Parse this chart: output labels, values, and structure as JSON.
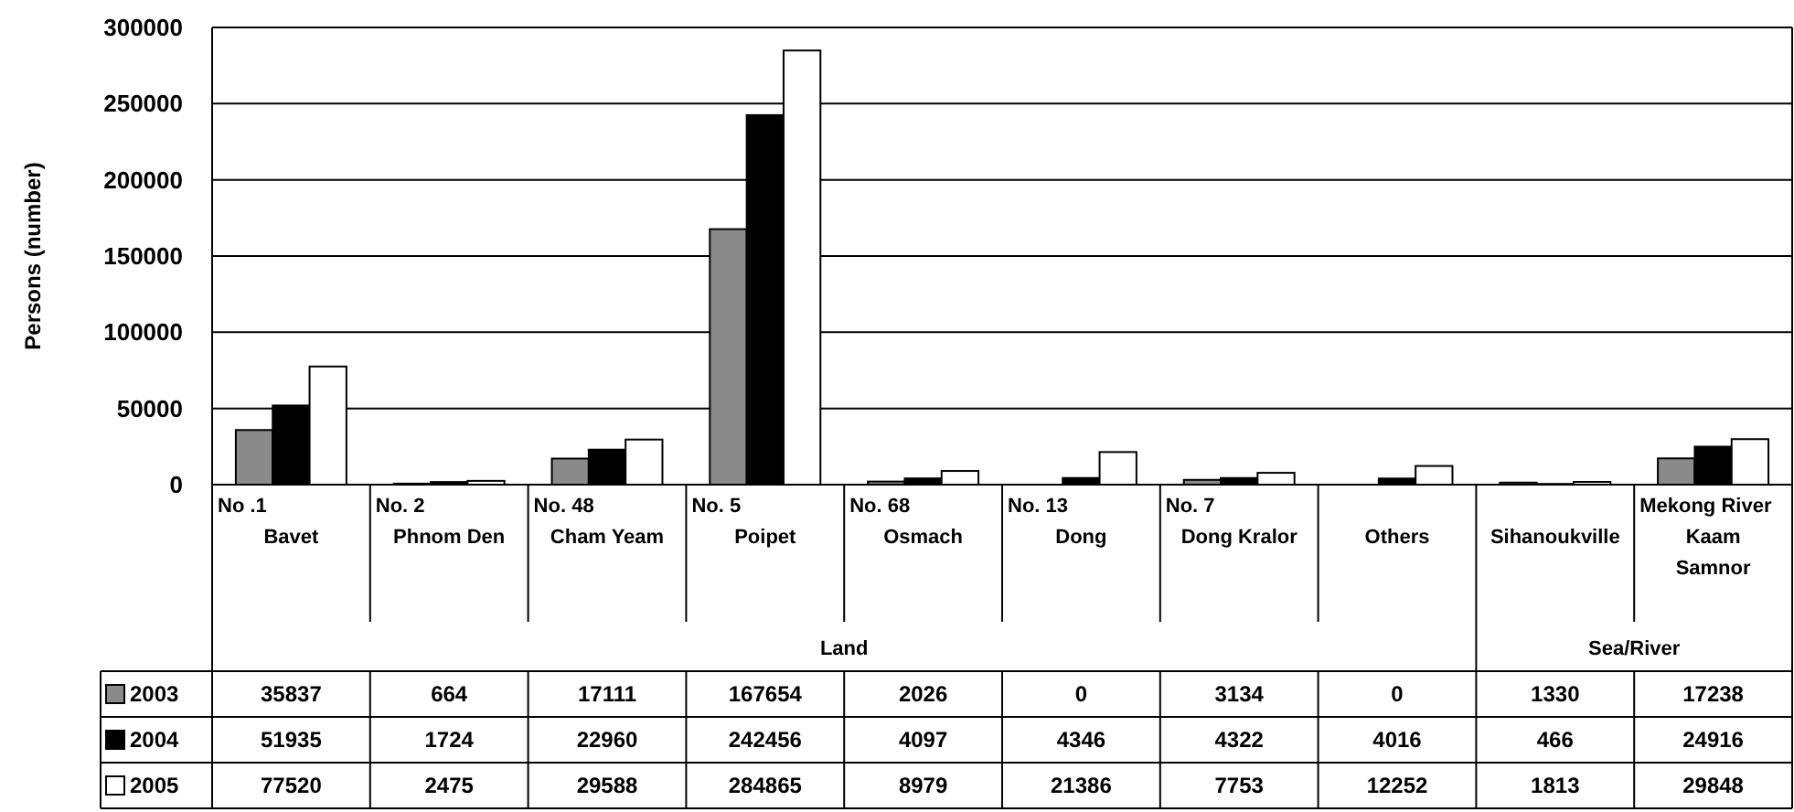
{
  "chart_data": {
    "type": "bar",
    "ylabel": "Persons (number)",
    "categories": [
      "No .1\nBavet",
      "No. 2\nPhnom Den",
      "No. 48\nCham Yeam",
      "No. 5\nPoipet",
      "No. 68\nOsmach",
      "No. 13\nDong",
      "No. 7\nDong Kralor",
      "Others",
      "Sihanoukville",
      "Mekong River\nKaam\nSamnor"
    ],
    "series": [
      {
        "name": "2003",
        "color": "#8a8a8a",
        "values": [
          35837,
          664,
          17111,
          167654,
          2026,
          0,
          3134,
          0,
          1330,
          17238
        ]
      },
      {
        "name": "2004",
        "color": "#000000",
        "values": [
          51935,
          1724,
          22960,
          242456,
          4097,
          4346,
          4322,
          4016,
          466,
          24916
        ]
      },
      {
        "name": "2005",
        "color": "#ffffff",
        "values": [
          77520,
          2475,
          29588,
          284865,
          8979,
          21386,
          7753,
          12252,
          1813,
          29848
        ]
      }
    ],
    "ylim": [
      0,
      300000
    ],
    "yticks": [
      0,
      50000,
      100000,
      150000,
      200000,
      250000,
      300000
    ],
    "grid": "y",
    "legend": "bottom",
    "data_labels": true,
    "annotations": [
      "Land",
      "Sea/River"
    ]
  }
}
